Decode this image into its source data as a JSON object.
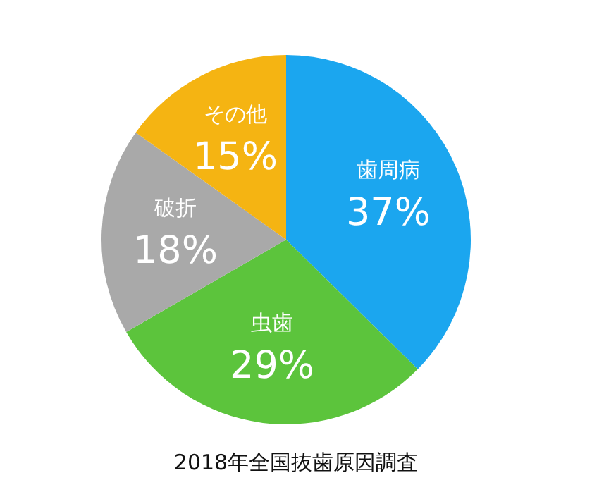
{
  "chart_data": {
    "type": "pie",
    "title": "2018年全国抜歯原因調査",
    "categories": [
      "歯周病",
      "虫歯",
      "破折",
      "その他"
    ],
    "values": [
      37,
      29,
      18,
      15
    ],
    "value_labels": [
      "37%",
      "29%",
      "18%",
      "15%"
    ],
    "colors": [
      "#1ba6ef",
      "#5cc43c",
      "#a9a9a9",
      "#f5b412"
    ]
  }
}
